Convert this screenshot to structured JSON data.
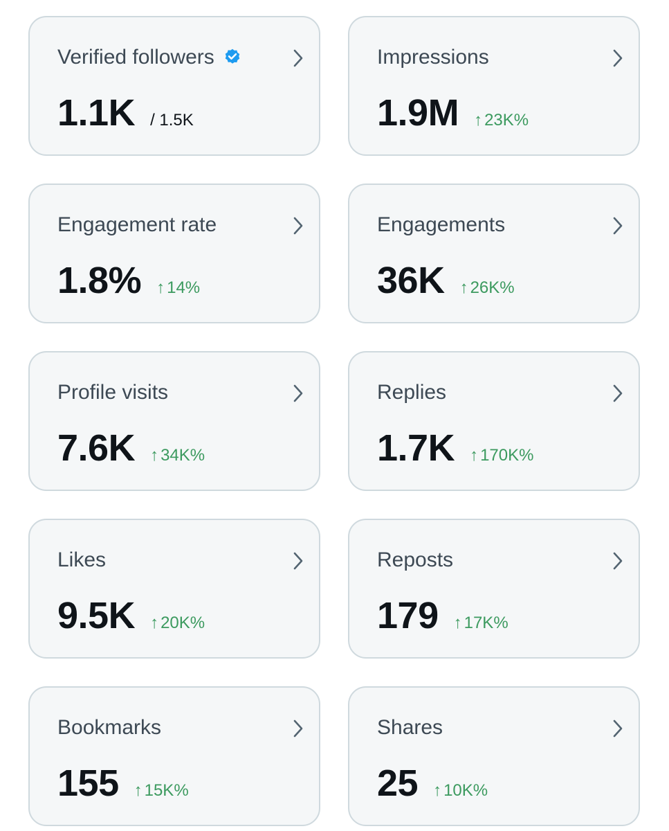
{
  "colors": {
    "card_bg": "#f5f7f8",
    "card_border": "#cfd9de",
    "title": "#3d4954",
    "value": "#0f1419",
    "positive": "#3c9a5f",
    "verified_badge": "#1d9bf0"
  },
  "icons": {
    "change": "↑",
    "chevron": "chevron-right-icon",
    "verified": "verified-badge-icon"
  },
  "cards": {
    "verified_followers": {
      "title": "Verified followers",
      "value": "1.1K",
      "sub": "/ 1.5K"
    },
    "impressions": {
      "title": "Impressions",
      "value": "1.9M",
      "change": "23K%"
    },
    "engagement_rate": {
      "title": "Engagement rate",
      "value": "1.8%",
      "change": "14%"
    },
    "engagements": {
      "title": "Engagements",
      "value": "36K",
      "change": "26K%"
    },
    "profile_visits": {
      "title": "Profile visits",
      "value": "7.6K",
      "change": "34K%"
    },
    "replies": {
      "title": "Replies",
      "value": "1.7K",
      "change": "170K%"
    },
    "likes": {
      "title": "Likes",
      "value": "9.5K",
      "change": "20K%"
    },
    "reposts": {
      "title": "Reposts",
      "value": "179",
      "change": "17K%"
    },
    "bookmarks": {
      "title": "Bookmarks",
      "value": "155",
      "change": "15K%"
    },
    "shares": {
      "title": "Shares",
      "value": "25",
      "change": "10K%"
    }
  }
}
